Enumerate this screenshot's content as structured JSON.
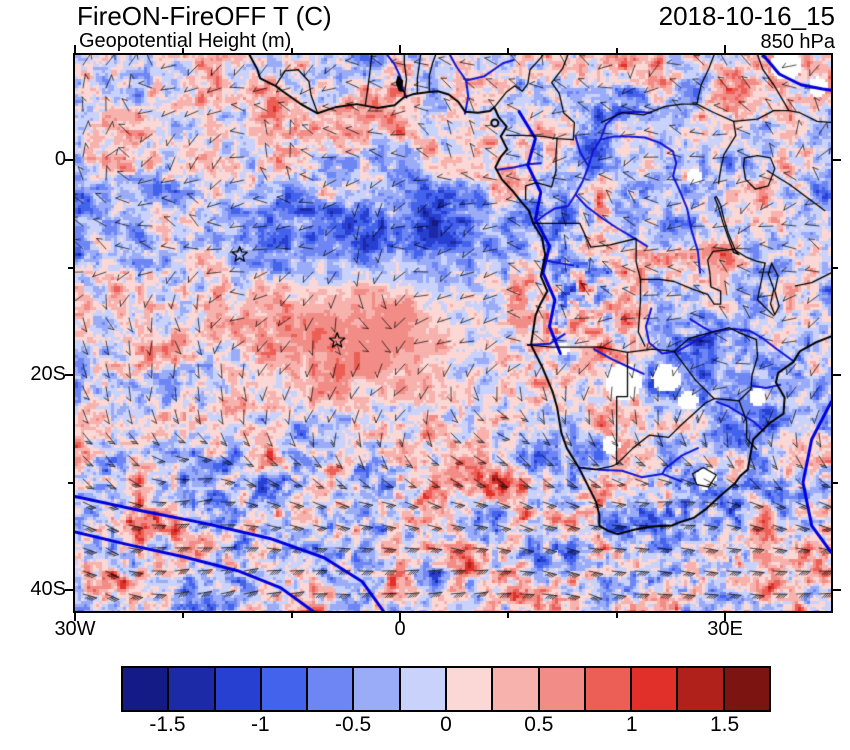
{
  "header": {
    "title": "FireON-FireOFF T (C)",
    "subtitle": "Geopotential Height (m)",
    "datetime": "2018-10-16_15",
    "level": "850 hPa"
  },
  "axes": {
    "y_tick_labels": [
      "0",
      "20S",
      "40S"
    ],
    "x_tick_labels": [
      "30W",
      "0",
      "30E"
    ],
    "lon_min": -30,
    "lon_max": 39.8,
    "lat_min": -41.9,
    "lat_max": 9.8
  },
  "colorbar": {
    "labels": [
      "-1.5",
      "-1",
      "-0.5",
      "0",
      "0.5",
      "1",
      "1.5"
    ],
    "levels": [
      -1.75,
      -1.5,
      -1.25,
      -1,
      -0.75,
      -0.5,
      -0.25,
      0,
      0.25,
      0.5,
      0.75,
      1,
      1.25,
      1.5,
      1.75
    ],
    "colors": [
      "#141a86",
      "#1c2aa8",
      "#2840d2",
      "#4463ec",
      "#6e86f3",
      "#9aacf8",
      "#c8d2fb",
      "#fbd8d5",
      "#f7b2ad",
      "#f28c86",
      "#ec5f57",
      "#e12f29",
      "#b0211c",
      "#7c1511"
    ]
  },
  "chart_data": {
    "type": "heatmap",
    "title": "FireON-FireOFF T (C)",
    "subtitle": "Geopotential Height (m)",
    "time_label": "2018-10-16_15",
    "pressure_level": "850 hPa",
    "description": "Shaded difference field (FireON minus FireOFF) of 850 hPa temperature in C over the South Atlantic and southern Africa, with blue geopotential height contours, wind barbs, coastlines, country borders, rivers and lakes overlaid.",
    "x_axis": {
      "tick_labels": [
        "30W",
        "0",
        "30E"
      ],
      "lon_range": [
        -30,
        39.8
      ]
    },
    "y_axis": {
      "tick_labels": [
        "0",
        "20S",
        "40S"
      ],
      "lat_range": [
        -41.9,
        9.8
      ]
    },
    "color_levels_C": [
      -1.75,
      -1.5,
      -1.25,
      -1,
      -0.75,
      -0.5,
      -0.25,
      0,
      0.25,
      0.5,
      0.75,
      1,
      1.25,
      1.5,
      1.75
    ],
    "colorbar_tick_labels": [
      "-1.5",
      "-1",
      "-0.5",
      "0",
      "0.5",
      "1",
      "1.5"
    ],
    "overlays": [
      "wind barbs",
      "geopotential height contours (blue lines)",
      "coastlines, country borders, lakes and rivers",
      "two star markers"
    ],
    "markers": [
      {
        "type": "star",
        "lon": -14.8,
        "lat": -8.8
      },
      {
        "type": "star",
        "lon": -5.8,
        "lat": -16.8
      }
    ]
  }
}
